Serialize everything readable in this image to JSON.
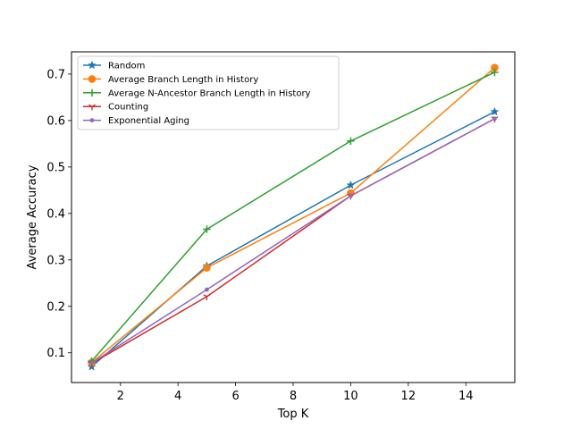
{
  "chart_data": {
    "type": "line",
    "xlabel": "Top K",
    "ylabel": "Average Accuracy",
    "xlim": [
      0.3,
      15.7
    ],
    "ylim": [
      0.036,
      0.748
    ],
    "xticks": [
      2,
      4,
      6,
      8,
      10,
      12,
      14
    ],
    "yticks": [
      0.1,
      0.2,
      0.3,
      0.4,
      0.5,
      0.6,
      0.7
    ],
    "grid": false,
    "legend_position": "top-left",
    "x": [
      1,
      5,
      10,
      15
    ],
    "series": [
      {
        "name": "Random",
        "values": [
          0.07,
          0.287,
          0.461,
          0.619
        ],
        "color": "#1f77b4",
        "marker": "star"
      },
      {
        "name": "Average Branch Length in History",
        "values": [
          0.079,
          0.283,
          0.444,
          0.714
        ],
        "color": "#ff7f0e",
        "marker": "circle"
      },
      {
        "name": "Average N-Ancestor Branch Length in History",
        "values": [
          0.082,
          0.366,
          0.556,
          0.704
        ],
        "color": "#2ca02c",
        "marker": "plus"
      },
      {
        "name": "Counting",
        "values": [
          0.077,
          0.221,
          0.438,
          0.604
        ],
        "color": "#d62728",
        "marker": "tri"
      },
      {
        "name": "Exponential Aging",
        "values": [
          0.078,
          0.236,
          0.438,
          0.604
        ],
        "color": "#9467bd",
        "marker": "dot"
      }
    ]
  }
}
